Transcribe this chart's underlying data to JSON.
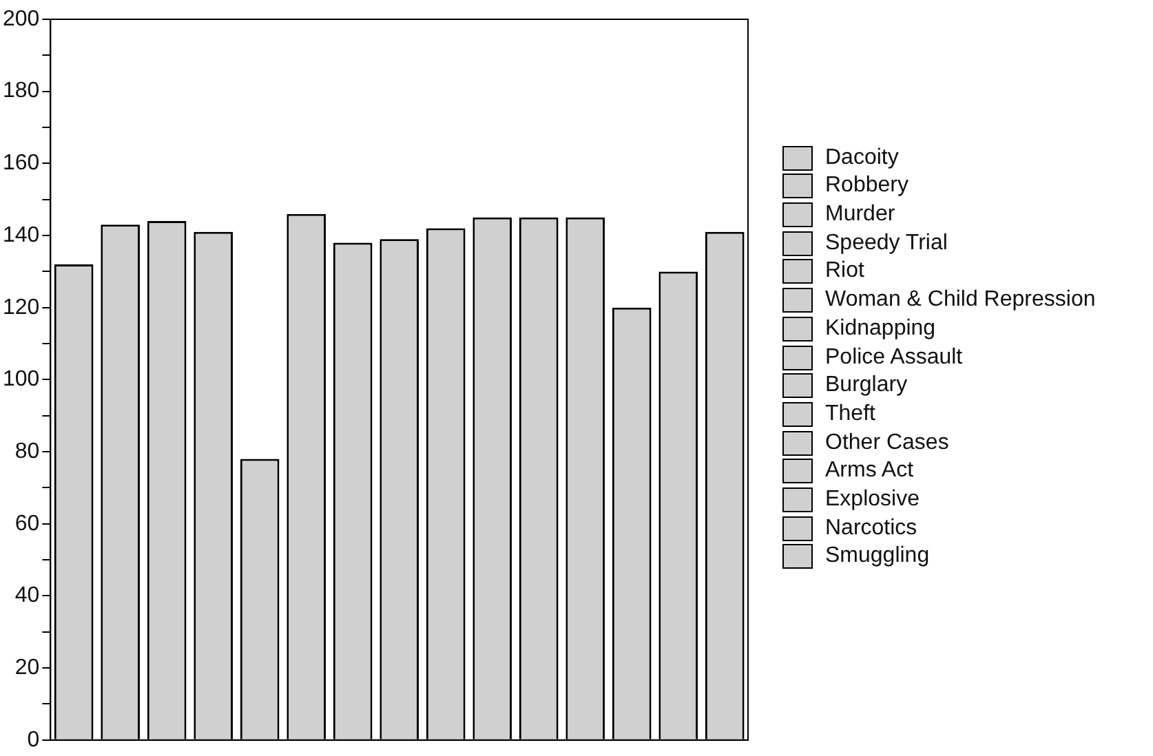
{
  "chart_data": {
    "type": "bar",
    "categories": [
      null,
      null,
      null,
      null,
      null,
      null,
      null,
      null,
      null,
      null,
      null,
      null,
      null,
      null,
      null
    ],
    "series": [
      {
        "name": "Dacoity",
        "color": "#d0d0d0",
        "values": [
          132,
          null,
          null,
          null,
          null,
          null,
          null,
          null,
          null,
          null,
          null,
          null,
          null,
          null,
          null
        ]
      },
      {
        "name": "Robbery",
        "color": "#d0d0d0",
        "values": [
          null,
          143,
          null,
          null,
          null,
          null,
          null,
          null,
          null,
          null,
          null,
          null,
          null,
          null,
          null
        ]
      },
      {
        "name": "Murder",
        "color": "#d0d0d0",
        "values": [
          null,
          null,
          144,
          null,
          null,
          null,
          null,
          null,
          null,
          null,
          null,
          null,
          null,
          null,
          null
        ]
      },
      {
        "name": "Speedy Trial",
        "color": "#d0d0d0",
        "values": [
          null,
          null,
          null,
          141,
          null,
          null,
          null,
          null,
          null,
          null,
          null,
          null,
          null,
          null,
          null
        ]
      },
      {
        "name": "Riot",
        "color": "#d0d0d0",
        "values": [
          null,
          null,
          null,
          null,
          78,
          null,
          null,
          null,
          null,
          null,
          null,
          null,
          null,
          null,
          null
        ]
      },
      {
        "name": "Woman & Child Repression",
        "color": "#d0d0d0",
        "values": [
          null,
          null,
          null,
          null,
          null,
          146,
          null,
          null,
          null,
          null,
          null,
          null,
          null,
          null,
          null
        ]
      },
      {
        "name": "Kidnapping",
        "color": "#d0d0d0",
        "values": [
          null,
          null,
          null,
          null,
          null,
          null,
          138,
          null,
          null,
          null,
          null,
          null,
          null,
          null,
          null
        ]
      },
      {
        "name": "Police Assault",
        "color": "#d0d0d0",
        "values": [
          null,
          null,
          null,
          null,
          null,
          null,
          null,
          139,
          null,
          null,
          null,
          null,
          null,
          null,
          null
        ]
      },
      {
        "name": "Burglary",
        "color": "#d0d0d0",
        "values": [
          null,
          null,
          null,
          null,
          null,
          null,
          null,
          null,
          142,
          null,
          null,
          null,
          null,
          null,
          null
        ]
      },
      {
        "name": "Theft",
        "color": "#d0d0d0",
        "values": [
          null,
          null,
          null,
          null,
          null,
          null,
          null,
          null,
          null,
          145,
          null,
          null,
          null,
          null,
          null
        ]
      },
      {
        "name": "Other Cases",
        "color": "#d0d0d0",
        "values": [
          null,
          null,
          null,
          null,
          null,
          null,
          null,
          null,
          null,
          null,
          145,
          null,
          null,
          null,
          null
        ]
      },
      {
        "name": "Arms Act",
        "color": "#d0d0d0",
        "values": [
          null,
          null,
          null,
          null,
          null,
          null,
          null,
          null,
          null,
          null,
          null,
          145,
          null,
          null,
          null
        ]
      },
      {
        "name": "Explosive",
        "color": "#d0d0d0",
        "values": [
          null,
          null,
          null,
          null,
          null,
          null,
          null,
          null,
          null,
          null,
          null,
          null,
          120,
          null,
          null
        ]
      },
      {
        "name": "Narcotics",
        "color": "#d0d0d0",
        "values": [
          null,
          null,
          null,
          null,
          null,
          null,
          null,
          null,
          null,
          null,
          null,
          null,
          null,
          130,
          null
        ]
      },
      {
        "name": "Smuggling",
        "color": "#d0d0d0",
        "values": [
          null,
          null,
          null,
          null,
          null,
          null,
          null,
          null,
          null,
          null,
          null,
          null,
          null,
          null,
          141
        ]
      }
    ],
    "ylim": [
      0,
      200
    ],
    "yticks": [
      0,
      {
        "value": 10,
        "label": null
      },
      20,
      {
        "value": 30,
        "label": null
      },
      40,
      {
        "value": 50,
        "label": null
      },
      60,
      {
        "value": 70,
        "label": null
      },
      80,
      {
        "value": 90,
        "label": null
      },
      100,
      {
        "value": 110,
        "label": null
      },
      120,
      {
        "value": 130,
        "label": null
      },
      140,
      {
        "value": 150,
        "label": null
      },
      160,
      {
        "value": 170,
        "label": null
      },
      180,
      {
        "value": 190,
        "label": null
      },
      200
    ],
    "grid": false,
    "legend": "right"
  }
}
